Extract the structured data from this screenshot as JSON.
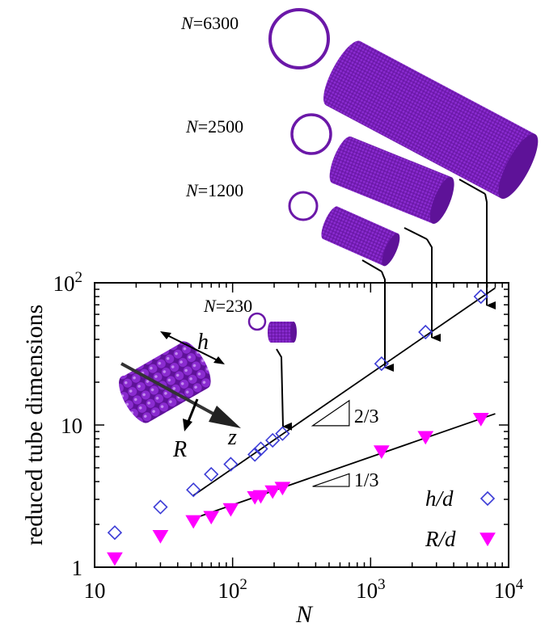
{
  "chart_data": {
    "type": "scatter",
    "title": "",
    "xlabel": "N",
    "ylabel": "reduced tube dimensions",
    "x_scale": "log",
    "y_scale": "log",
    "xlim": [
      10,
      10000
    ],
    "ylim": [
      1,
      100
    ],
    "x_ticks": [
      {
        "value": 10,
        "base": "10",
        "exp": ""
      },
      {
        "value": 100,
        "base": "10",
        "exp": "2"
      },
      {
        "value": 1000,
        "base": "10",
        "exp": "3"
      },
      {
        "value": 10000,
        "base": "10",
        "exp": "4"
      }
    ],
    "y_ticks": [
      {
        "value": 1,
        "base": "1",
        "exp": ""
      },
      {
        "value": 10,
        "base": "10",
        "exp": ""
      },
      {
        "value": 100,
        "base": "10",
        "exp": "2"
      }
    ],
    "grid": false,
    "legend_position": "bottom-right",
    "series": [
      {
        "name": "h/d",
        "marker": "open-diamond",
        "color": "#3b3bd6",
        "points": [
          [
            14,
            1.75
          ],
          [
            30,
            2.65
          ],
          [
            52,
            3.5
          ],
          [
            70,
            4.5
          ],
          [
            97,
            5.3
          ],
          [
            145,
            6.2
          ],
          [
            160,
            6.8
          ],
          [
            195,
            7.8
          ],
          [
            230,
            8.7
          ],
          [
            1200,
            27
          ],
          [
            2500,
            45
          ],
          [
            6300,
            80
          ]
        ]
      },
      {
        "name": "R/d",
        "marker": "filled-down-triangle",
        "color": "#ff00ff",
        "points": [
          [
            14,
            1.15
          ],
          [
            30,
            1.65
          ],
          [
            52,
            2.1
          ],
          [
            70,
            2.25
          ],
          [
            97,
            2.55
          ],
          [
            145,
            3.1
          ],
          [
            160,
            3.15
          ],
          [
            195,
            3.4
          ],
          [
            230,
            3.6
          ],
          [
            1200,
            6.5
          ],
          [
            2500,
            8.2
          ],
          [
            6300,
            11
          ]
        ]
      }
    ],
    "fits": [
      {
        "x_range": [
          52,
          8000
        ],
        "y_range": [
          3.2,
          92
        ],
        "slope_label": "2/3"
      },
      {
        "x_range": [
          52,
          8000
        ],
        "y_range": [
          2.2,
          12
        ],
        "slope_label": "1/3"
      }
    ],
    "annotations": {
      "n_labels": [
        {
          "N": 230,
          "text": "N=230"
        },
        {
          "N": 1200,
          "text": "N=1200"
        },
        {
          "N": 2500,
          "text": "N=2500"
        },
        {
          "N": 6300,
          "text": "N=6300"
        }
      ],
      "inset_labels": {
        "h": "h",
        "R": "R",
        "z": "z"
      }
    }
  },
  "colors": {
    "tube": "#7a1fb8",
    "tube_dark": "#4a0c7a",
    "tube_light": "#9a3fd8",
    "axis": "#000000"
  }
}
